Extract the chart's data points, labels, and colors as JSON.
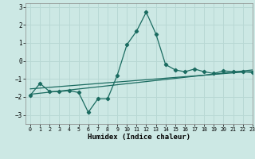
{
  "title": "",
  "xlabel": "Humidex (Indice chaleur)",
  "ylabel": "",
  "background_color": "#cce8e4",
  "grid_color": "#b8d8d4",
  "line_color": "#1a6b60",
  "xlim": [
    -0.5,
    23
  ],
  "ylim": [
    -3.5,
    3.2
  ],
  "yticks": [
    -3,
    -2,
    -1,
    0,
    1,
    2,
    3
  ],
  "xticks": [
    0,
    1,
    2,
    3,
    4,
    5,
    6,
    7,
    8,
    9,
    10,
    11,
    12,
    13,
    14,
    15,
    16,
    17,
    18,
    19,
    20,
    21,
    22,
    23
  ],
  "line1_x": [
    0,
    1,
    2,
    3,
    4,
    5,
    6,
    7,
    8,
    9,
    10,
    11,
    12,
    13,
    14,
    15,
    16,
    17,
    18,
    19,
    20,
    21,
    22,
    23
  ],
  "line1_y": [
    -1.9,
    -1.25,
    -1.7,
    -1.7,
    -1.65,
    -1.75,
    -2.85,
    -2.1,
    -2.1,
    -0.8,
    0.9,
    1.65,
    2.7,
    1.5,
    -0.2,
    -0.5,
    -0.6,
    -0.45,
    -0.6,
    -0.7,
    -0.55,
    -0.6,
    -0.6,
    -0.65
  ],
  "line2_x": [
    0,
    23
  ],
  "line2_y": [
    -1.55,
    -0.58
  ],
  "line3_x": [
    0,
    23
  ],
  "line3_y": [
    -1.85,
    -0.5
  ]
}
